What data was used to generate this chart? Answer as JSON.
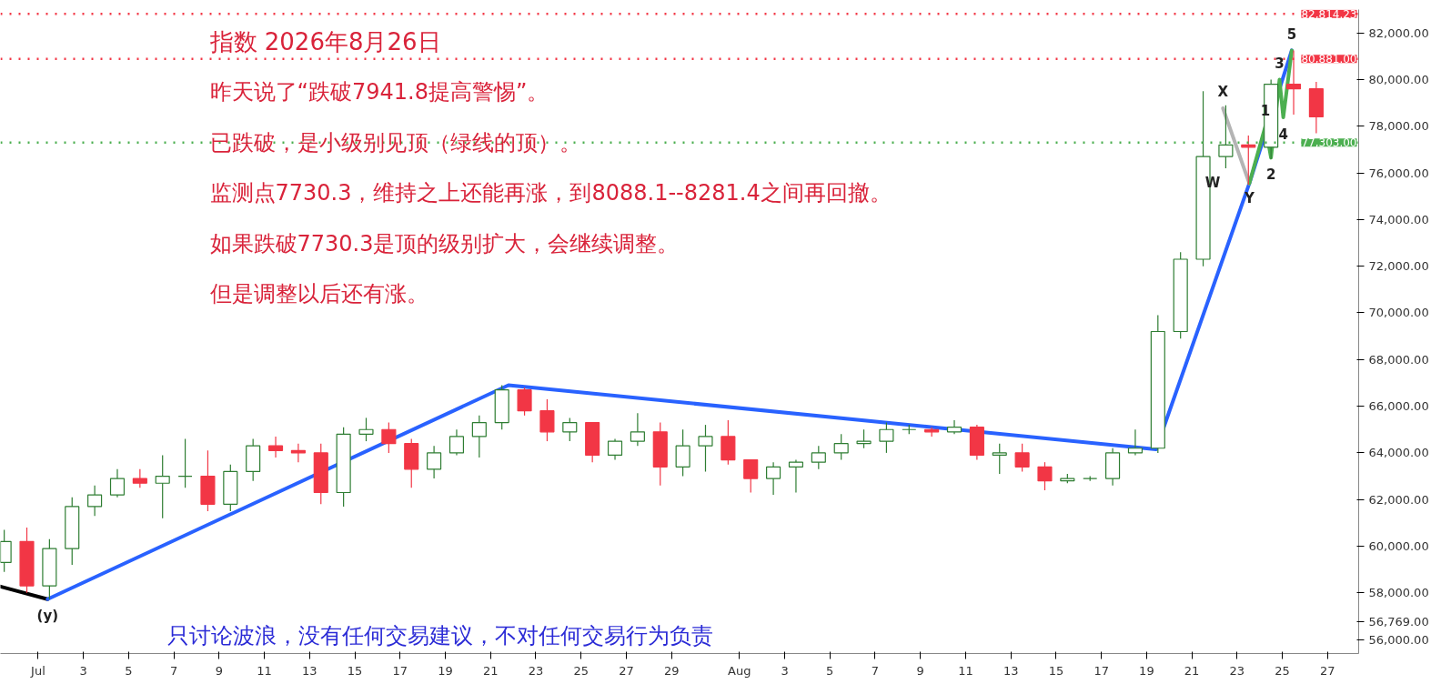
{
  "chart_data": {
    "type": "candlestick",
    "title": "指数 2026年8月26日",
    "annotations": [
      "昨天说了“跌破7941.8提高警惕”。",
      "已跌破，是小级别见顶（绿线的顶）。",
      "监测点7730.3，维持之上还能再涨，到8088.1--8281.4之间再回撤。",
      "如果跌破7730.3是顶的级别扩大，会继续调整。",
      "但是调整以后还有涨。",
      "只讨论波浪，没有任何交易建议，不对任何交易行为负责",
      {
        "text": "(y)",
        "x": "2026-07-01T10:00",
        "y": 57730
      },
      {
        "text": "W",
        "x": "2026-08-21T22:00",
        "y": 75580
      },
      {
        "text": "X",
        "x": "2026-08-22T09:00",
        "y": 78770
      },
      {
        "text": "Y",
        "x": "2026-08-23T13:00",
        "y": 74920
      },
      {
        "text": "1",
        "x": "2026-08-24T06:00",
        "y": 78000
      },
      {
        "text": "2",
        "x": "2026-08-24T12:00",
        "y": 76650
      },
      {
        "text": "3",
        "x": "2026-08-24T21:00",
        "y": 80000
      },
      {
        "text": "4",
        "x": "2026-08-25T01:00",
        "y": 78380
      },
      {
        "text": "5",
        "x": "2026-08-25T10:00",
        "y": 81250
      }
    ],
    "x": [
      "2026-06-29T12:00",
      "2026-06-30T12:00",
      "2026-07-01T12:00",
      "2026-07-02T12:00",
      "2026-07-03T12:00",
      "2026-07-04T12:00",
      "2026-07-05T12:00",
      "2026-07-06T12:00",
      "2026-07-07T12:00",
      "2026-07-08T12:00",
      "2026-07-09T12:00",
      "2026-07-10T12:00",
      "2026-07-11T12:00",
      "2026-07-12T12:00",
      "2026-07-13T12:00",
      "2026-07-14T12:00",
      "2026-07-15T12:00",
      "2026-07-16T12:00",
      "2026-07-17T12:00",
      "2026-07-18T12:00",
      "2026-07-19T12:00",
      "2026-07-20T12:00",
      "2026-07-21T12:00",
      "2026-07-22T12:00",
      "2026-07-23T12:00",
      "2026-07-24T12:00",
      "2026-07-25T12:00",
      "2026-07-26T12:00",
      "2026-07-27T12:00",
      "2026-07-28T12:00",
      "2026-07-29T12:00",
      "2026-07-30T12:00",
      "2026-07-31T12:00",
      "2026-08-01T12:00",
      "2026-08-02T12:00",
      "2026-08-03T12:00",
      "2026-08-04T12:00",
      "2026-08-05T12:00",
      "2026-08-06T12:00",
      "2026-08-07T12:00",
      "2026-08-08T12:00",
      "2026-08-09T12:00",
      "2026-08-10T12:00",
      "2026-08-11T12:00",
      "2026-08-12T12:00",
      "2026-08-13T12:00",
      "2026-08-14T12:00",
      "2026-08-15T12:00",
      "2026-08-16T12:00",
      "2026-08-17T12:00",
      "2026-08-18T12:00",
      "2026-08-19T12:00",
      "2026-08-20T12:00",
      "2026-08-21T12:00",
      "2026-08-22T12:00",
      "2026-08-23T12:00",
      "2026-08-24T12:00",
      "2026-08-25T12:00",
      "2026-08-26T12:00"
    ],
    "ohlc": [
      [
        59300,
        60700,
        58900,
        60200
      ],
      [
        60200,
        60800,
        58000,
        58300
      ],
      [
        58300,
        60300,
        57730,
        59900
      ],
      [
        59900,
        62100,
        59200,
        61700
      ],
      [
        61700,
        62600,
        61300,
        62200
      ],
      [
        62200,
        63300,
        62100,
        62900
      ],
      [
        62900,
        63300,
        62500,
        62700
      ],
      [
        62700,
        63900,
        61200,
        63000
      ],
      [
        63000,
        64600,
        62500,
        63000
      ],
      [
        63000,
        64100,
        61500,
        61800
      ],
      [
        61800,
        63500,
        61500,
        63200
      ],
      [
        63200,
        64600,
        62800,
        64300
      ],
      [
        64300,
        64700,
        63800,
        64100
      ],
      [
        64100,
        64400,
        63600,
        64000
      ],
      [
        64000,
        64400,
        61800,
        62300
      ],
      [
        62300,
        65100,
        61700,
        64800
      ],
      [
        64800,
        65500,
        64500,
        65000
      ],
      [
        65000,
        65300,
        64000,
        64400
      ],
      [
        64400,
        64600,
        62500,
        63300
      ],
      [
        63300,
        64300,
        62900,
        64000
      ],
      [
        64000,
        65000,
        63900,
        64700
      ],
      [
        64700,
        65600,
        63800,
        65300
      ],
      [
        65300,
        66900,
        65000,
        66700
      ],
      [
        66700,
        66800,
        65600,
        65800
      ],
      [
        65800,
        66300,
        64500,
        64900
      ],
      [
        64900,
        65500,
        64500,
        65300
      ],
      [
        65300,
        65300,
        63600,
        63900
      ],
      [
        63900,
        64600,
        63700,
        64500
      ],
      [
        64500,
        65700,
        64300,
        64900
      ],
      [
        64900,
        65300,
        62600,
        63400
      ],
      [
        63400,
        65000,
        63000,
        64300
      ],
      [
        64300,
        65200,
        63200,
        64700
      ],
      [
        64700,
        65400,
        63500,
        63700
      ],
      [
        63700,
        63700,
        62300,
        62900
      ],
      [
        62900,
        63600,
        62200,
        63400
      ],
      [
        63400,
        63700,
        62300,
        63600
      ],
      [
        63600,
        64300,
        63300,
        64000
      ],
      [
        64000,
        64800,
        63700,
        64400
      ],
      [
        64400,
        65000,
        64200,
        64500
      ],
      [
        64500,
        65300,
        64000,
        65000
      ],
      [
        65000,
        65200,
        64800,
        65000
      ],
      [
        65000,
        65100,
        64700,
        64900
      ],
      [
        64900,
        65400,
        64800,
        65100
      ],
      [
        65100,
        65200,
        63700,
        63900
      ],
      [
        63900,
        64400,
        63100,
        64000
      ],
      [
        64000,
        64400,
        63200,
        63400
      ],
      [
        63400,
        63600,
        62400,
        62800
      ],
      [
        62800,
        63100,
        62700,
        62900
      ],
      [
        62900,
        63000,
        62800,
        62900
      ],
      [
        62900,
        64200,
        62600,
        64000
      ],
      [
        64000,
        65000,
        63900,
        64200
      ],
      [
        64200,
        69900,
        64000,
        69200
      ],
      [
        69200,
        72600,
        68900,
        72300
      ],
      [
        72300,
        79500,
        72000,
        76700
      ],
      [
        76700,
        78900,
        76200,
        77200
      ],
      [
        77200,
        77600,
        75500,
        77100
      ],
      [
        77100,
        80000,
        76600,
        79800
      ],
      [
        79800,
        81250,
        78500,
        79600
      ],
      [
        79600,
        79900,
        77700,
        78400
      ]
    ],
    "series": [
      {
        "type": "line",
        "color": "#000000",
        "x": [
          "2026-06-29T08:00",
          "2026-07-01T10:00"
        ],
        "values": [
          58270,
          57730
        ]
      },
      {
        "type": "line",
        "color": "#2962ff",
        "x": [
          "2026-07-01T10:00",
          "2026-07-21T19:00",
          "2026-08-19T10:00",
          "2026-08-23T13:00",
          "2026-08-25T10:00"
        ],
        "values": [
          57730,
          66900,
          64150,
          75550,
          81250
        ]
      },
      {
        "type": "line",
        "color": "#b4b4b4",
        "x": [
          "2026-08-22T09:00",
          "2026-08-23T13:00"
        ],
        "values": [
          78770,
          75550
        ]
      },
      {
        "type": "line",
        "color": "#4caf50",
        "x": [
          "2026-08-23T13:00",
          "2026-08-24T06:00",
          "2026-08-24T12:00",
          "2026-08-24T21:00",
          "2026-08-25T01:00",
          "2026-08-25T10:00"
        ],
        "values": [
          75550,
          78000,
          76650,
          80000,
          78380,
          81250
        ]
      }
    ],
    "xlim": [
      "2026-06-29T08:00",
      "2026-08-28T09:00"
    ],
    "ylim": [
      55400,
      83000
    ],
    "xticks": [
      {
        "value": "2026-07-01",
        "label": "Jul"
      },
      {
        "value": "2026-07-03",
        "label": "3"
      },
      {
        "value": "2026-07-05",
        "label": "5"
      },
      {
        "value": "2026-07-07",
        "label": "7"
      },
      {
        "value": "2026-07-09",
        "label": "9"
      },
      {
        "value": "2026-07-11",
        "label": "11"
      },
      {
        "value": "2026-07-13",
        "label": "13"
      },
      {
        "value": "2026-07-15",
        "label": "15"
      },
      {
        "value": "2026-07-17",
        "label": "17"
      },
      {
        "value": "2026-07-19",
        "label": "19"
      },
      {
        "value": "2026-07-21",
        "label": "21"
      },
      {
        "value": "2026-07-23",
        "label": "23"
      },
      {
        "value": "2026-07-25",
        "label": "25"
      },
      {
        "value": "2026-07-27",
        "label": "27"
      },
      {
        "value": "2026-07-29",
        "label": "29"
      },
      {
        "value": "2026-08-01",
        "label": "Aug"
      },
      {
        "value": "2026-08-03",
        "label": "3"
      },
      {
        "value": "2026-08-05",
        "label": "5"
      },
      {
        "value": "2026-08-07",
        "label": "7"
      },
      {
        "value": "2026-08-09",
        "label": "9"
      },
      {
        "value": "2026-08-11",
        "label": "11"
      },
      {
        "value": "2026-08-13",
        "label": "13"
      },
      {
        "value": "2026-08-15",
        "label": "15"
      },
      {
        "value": "2026-08-17",
        "label": "17"
      },
      {
        "value": "2026-08-19",
        "label": "19"
      },
      {
        "value": "2026-08-21",
        "label": "21"
      },
      {
        "value": "2026-08-23",
        "label": "23"
      },
      {
        "value": "2026-08-25",
        "label": "25"
      },
      {
        "value": "2026-08-27",
        "label": "27"
      }
    ],
    "yticks": [
      {
        "value": 56000,
        "label": "56,000.00"
      },
      {
        "value": 56769,
        "label": "56,769.00"
      },
      {
        "value": 58000,
        "label": "58,000.00"
      },
      {
        "value": 60000,
        "label": "60,000.00"
      },
      {
        "value": 62000,
        "label": "62,000.00"
      },
      {
        "value": 64000,
        "label": "64,000.00"
      },
      {
        "value": 66000,
        "label": "66,000.00"
      },
      {
        "value": 68000,
        "label": "68,000.00"
      },
      {
        "value": 70000,
        "label": "70,000.00"
      },
      {
        "value": 72000,
        "label": "72,000.00"
      },
      {
        "value": 74000,
        "label": "74,000.00"
      },
      {
        "value": 76000,
        "label": "76,000.00"
      },
      {
        "value": 78000,
        "label": "78,000.00"
      },
      {
        "value": 80000,
        "label": "80,000.00"
      },
      {
        "value": 82000,
        "label": "82,000.00"
      }
    ],
    "ref_lines": [
      {
        "axis": "y",
        "value": 82814.23,
        "label": "82,814.23",
        "color": "#f23645",
        "line_style": "dotted"
      },
      {
        "axis": "y",
        "value": 80881,
        "label": "80,881.00",
        "color": "#f23645",
        "line_style": "dotted"
      },
      {
        "axis": "y",
        "value": 77303,
        "label": "77,303.00",
        "color": "#4caf50",
        "line_style": "dotted"
      }
    ]
  }
}
